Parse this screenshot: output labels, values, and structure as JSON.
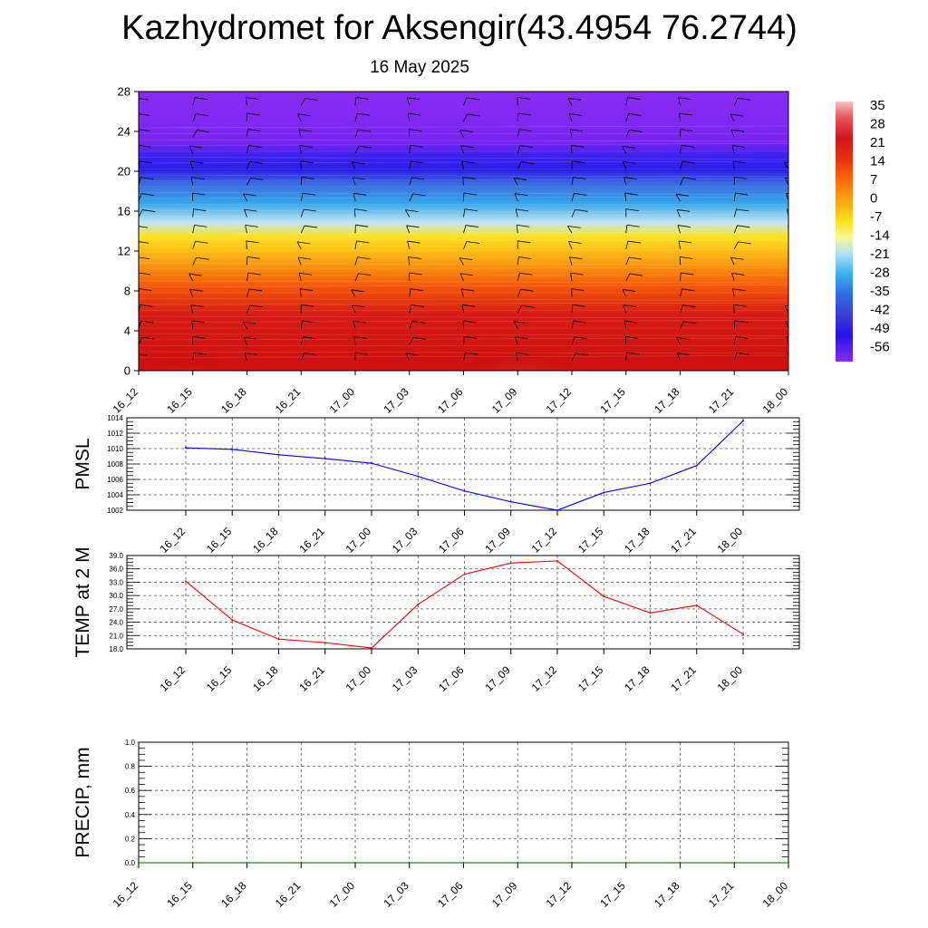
{
  "title": "Kazhydromet for Aksengir(43.4954 76.2744)",
  "subtitle": "16 May 2025",
  "time_labels": [
    "16_12",
    "16_15",
    "16_18",
    "16_21",
    "17_00",
    "17_03",
    "17_06",
    "17_09",
    "17_12",
    "17_15",
    "17_18",
    "17_21",
    "18_00"
  ],
  "chart_data": [
    {
      "type": "heatmap",
      "y_ticks": [
        "0",
        "4",
        "8",
        "12",
        "16",
        "20",
        "24",
        "28"
      ],
      "ylim": [
        0,
        28
      ],
      "x": [
        "16_12",
        "16_15",
        "16_18",
        "16_21",
        "17_00",
        "17_03",
        "17_06",
        "17_09",
        "17_12",
        "17_15",
        "17_18",
        "17_21",
        "18_00"
      ],
      "colorbar": {
        "labels": [
          "35",
          "28",
          "21",
          "14",
          "7",
          "0",
          "-7",
          "-14",
          "-21",
          "-28",
          "-35",
          "-42",
          "-49",
          "-56"
        ],
        "range": [
          -60,
          40
        ]
      },
      "surface_temps": [
        33,
        24,
        20,
        19,
        18,
        28,
        35,
        37,
        38,
        30,
        26,
        28,
        21
      ],
      "wind_barbs": true
    },
    {
      "type": "line",
      "ylabel": "PMSL",
      "x": [
        "16_12",
        "16_15",
        "16_18",
        "16_21",
        "17_00",
        "17_03",
        "17_06",
        "17_09",
        "17_12",
        "17_15",
        "17_18",
        "17_21",
        "18_00"
      ],
      "values": [
        1010.1,
        1009.9,
        1009.2,
        1008.7,
        1008.1,
        1006.4,
        1004.5,
        1003.1,
        1002.0,
        1004.3,
        1005.5,
        1007.8,
        1013.6
      ],
      "y_ticks": [
        "1002",
        "1004",
        "1006",
        "1008",
        "1010",
        "1012",
        "1014"
      ],
      "ylim": [
        1002,
        1014
      ],
      "color": "#0000ff"
    },
    {
      "type": "line",
      "ylabel": "TEMP at 2 M",
      "x": [
        "16_12",
        "16_15",
        "16_18",
        "16_21",
        "17_00",
        "17_03",
        "17_06",
        "17_09",
        "17_12",
        "17_15",
        "17_18",
        "17_21",
        "18_00"
      ],
      "values": [
        33.2,
        24.5,
        20.2,
        19.4,
        18.2,
        28.0,
        34.8,
        37.3,
        37.8,
        29.8,
        26.1,
        27.8,
        21.3
      ],
      "y_ticks": [
        "18.0",
        "21.0",
        "24.0",
        "27.0",
        "30.0",
        "33.0",
        "36.0",
        "39.0"
      ],
      "ylim": [
        18,
        39
      ],
      "color": "#ff0000"
    },
    {
      "type": "line",
      "ylabel": "PRECIP, mm",
      "x": [
        "16_12",
        "16_15",
        "16_18",
        "16_21",
        "17_00",
        "17_03",
        "17_06",
        "17_09",
        "17_12",
        "17_15",
        "17_18",
        "17_21",
        "18_00"
      ],
      "values": [
        0,
        0,
        0,
        0,
        0,
        0,
        0,
        0,
        0,
        0,
        0,
        0,
        0
      ],
      "y_ticks": [
        "0.0",
        "0.2",
        "0.4",
        "0.6",
        "0.8",
        "1.0"
      ],
      "ylim": [
        0,
        1
      ],
      "color": "#006400"
    }
  ]
}
